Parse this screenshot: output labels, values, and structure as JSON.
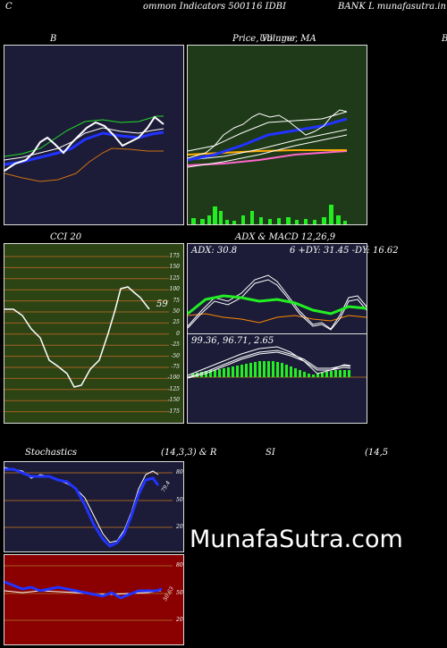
{
  "header": {
    "left_c": "C",
    "left_text": "ommon  Indicators 500116  IDBI",
    "right_text": "BANK L munafasutra.in"
  },
  "panels": {
    "b": {
      "title": "B"
    },
    "price": {
      "title_1": "Price,  Volume,  MA",
      "title_overlay": "Ullinger",
      "right_edge": "B"
    },
    "cci": {
      "title": "CCI 20",
      "last": "59",
      "ticks": [
        "175",
        "150",
        "125",
        "100",
        "75",
        "50",
        "25",
        "0",
        "-25",
        "-50",
        "-75",
        "-100",
        "-125",
        "-150",
        "-175"
      ]
    },
    "adx": {
      "title": "ADX  & MACD 12,26,9",
      "info_left": "ADX: 30.8",
      "info_right": "6  +DY: 31.45 -DY: 16.62",
      "macd_info": "99.36,  96.71,  2.65"
    },
    "stoch": {
      "title": "Stochastics",
      "params": "(14,3,3) & R",
      "ticks": [
        "80",
        "50",
        "20"
      ],
      "last": "79.4"
    },
    "rsi": {
      "title": "SI",
      "params": "(14,5",
      "ticks": [
        "80",
        "50",
        "20"
      ],
      "last": "50.63"
    }
  },
  "watermark": "MunafaSutra.com",
  "colors": {
    "navy_bg": "#1c1c38",
    "green_bg": "#1f3a18",
    "olive_bg": "#2c4414",
    "red_bg": "#8b0000"
  }
}
